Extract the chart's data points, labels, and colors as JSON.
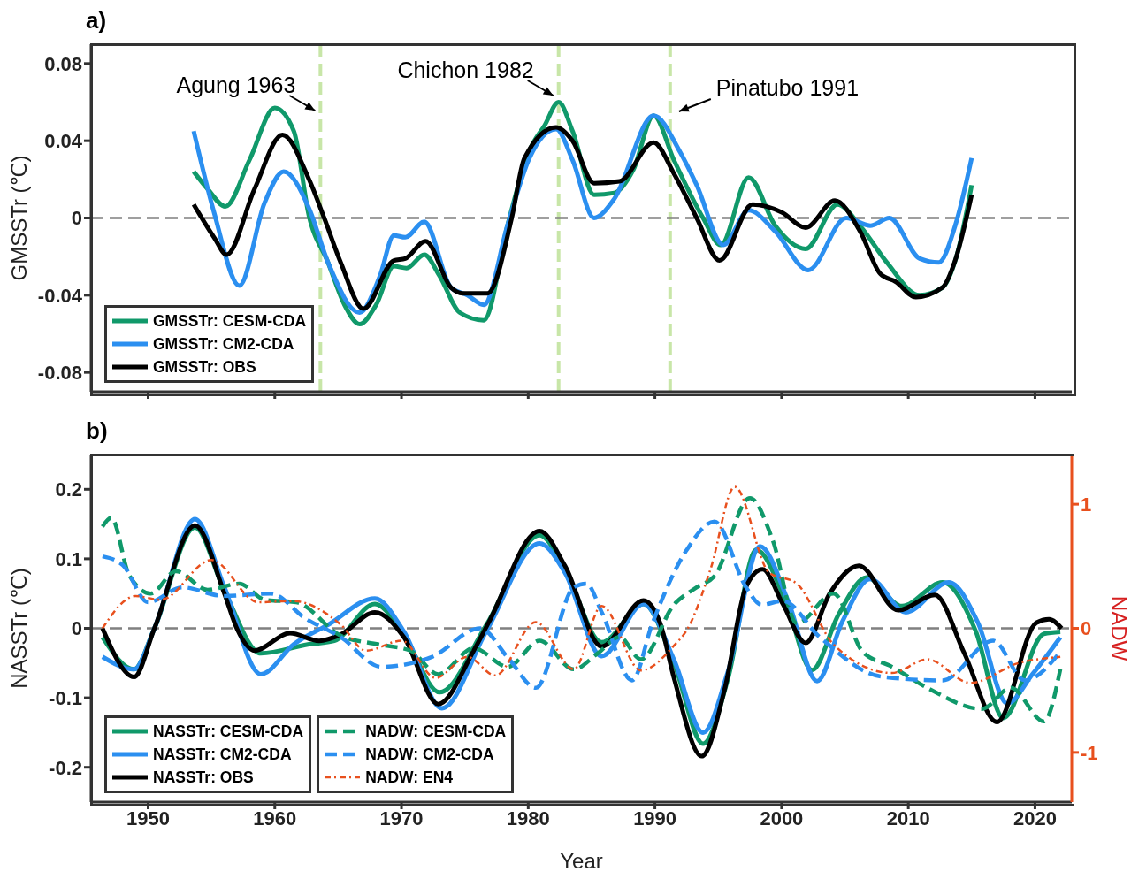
{
  "chart_data": [
    {
      "type": "line",
      "title": "a)",
      "ylabel": "GMSSTr (℃)",
      "xlim": [
        1945.5,
        2022.9
      ],
      "xticks": [
        1950,
        1960,
        1970,
        1980,
        1990,
        2000,
        2010,
        2020
      ],
      "ylim": [
        -0.09,
        0.09
      ],
      "yticks": [
        -0.08,
        -0.04,
        0,
        0.04,
        0.08
      ],
      "tick_labels": "y",
      "legend": "bottom left",
      "ref_lines": [
        {
          "axis": "x",
          "value": 1963.6,
          "label": "Agung 1963",
          "color": "#c8e6a8",
          "line_style": "dashed"
        },
        {
          "axis": "x",
          "value": 1982.4,
          "label": "Chichon 1982",
          "color": "#c8e6a8",
          "line_style": "dashed"
        },
        {
          "axis": "x",
          "value": 1991.2,
          "label": "Pinatubo 1991",
          "color": "#c8e6a8",
          "line_style": "dashed"
        },
        {
          "axis": "y",
          "value": 0,
          "color": "#808080",
          "line_style": "dashed"
        }
      ],
      "series": [
        {
          "name": "GMSSTr: CESM-CDA",
          "color": "#10996a",
          "line_style": "solid",
          "x": [
            1953.6,
            1954.7,
            1956.1,
            1958,
            1960,
            1961.5,
            1962.7,
            1964.2,
            1965.5,
            1966.7,
            1968,
            1969.4,
            1970.4,
            1971.8,
            1973,
            1974.6,
            1976.5,
            1978.4,
            1980.1,
            1981.3,
            1982.4,
            1983.5,
            1985.2,
            1986.8,
            1988.3,
            1989.9,
            1991.5,
            1993.8,
            1995.2,
            1997.4,
            1999.5,
            2001.9,
            2004.4,
            2006.3,
            2008.3,
            2010.9,
            2012.7,
            2013.8,
            2015
          ],
          "values": [
            0.024,
            0.015,
            0.006,
            0.03,
            0.057,
            0.045,
            0.001,
            -0.023,
            -0.045,
            -0.055,
            -0.045,
            -0.025,
            -0.026,
            -0.019,
            -0.03,
            -0.049,
            -0.053,
            -0.003,
            0.035,
            0.048,
            0.06,
            0.045,
            0.012,
            0.013,
            0.025,
            0.053,
            0.03,
            0.0,
            -0.014,
            0.021,
            -0.004,
            -0.016,
            0.007,
            -0.005,
            -0.023,
            -0.04,
            -0.036,
            -0.02,
            0.017
          ]
        },
        {
          "name": "GMSSTr: CM2-CDA",
          "color": "#2b8ff0",
          "line_style": "solid",
          "x": [
            1953.6,
            1955.2,
            1957.2,
            1959.2,
            1960.7,
            1962.7,
            1964.2,
            1966.7,
            1968.3,
            1969.4,
            1970.3,
            1971.8,
            1973.9,
            1975.2,
            1976.5,
            1978.4,
            1980.1,
            1982.2,
            1983.5,
            1985.2,
            1986.8,
            1989.9,
            1992,
            1993.3,
            1995.4,
            1997.4,
            1999.5,
            2002.1,
            2005.1,
            2007,
            2008.5,
            2010.9,
            2012.4,
            2013.7,
            2015
          ],
          "values": [
            0.045,
            0.003,
            -0.035,
            0.008,
            0.024,
            0.005,
            -0.023,
            -0.049,
            -0.03,
            -0.009,
            -0.01,
            -0.002,
            -0.036,
            -0.04,
            -0.045,
            -0.003,
            0.031,
            0.046,
            0.03,
            0.0,
            0.01,
            0.053,
            0.034,
            0.017,
            -0.014,
            0.004,
            -0.007,
            -0.027,
            0.0,
            -0.004,
            0.0,
            -0.021,
            -0.023,
            -0.004,
            0.031
          ]
        },
        {
          "name": "GMSSTr: OBS",
          "color": "#000000",
          "line_style": "solid",
          "x": [
            1953.6,
            1955.2,
            1956.2,
            1958.4,
            1960.6,
            1962.7,
            1963.9,
            1965.2,
            1967,
            1969.4,
            1970.3,
            1971.9,
            1973.9,
            1974.8,
            1976.8,
            1978.7,
            1979.7,
            1982.2,
            1983.5,
            1985.2,
            1987.2,
            1989.9,
            1991.5,
            1993.3,
            1995.1,
            1997.7,
            2000,
            2001.9,
            2004.2,
            2006.2,
            2007.8,
            2009,
            2010.6,
            2012.7,
            2013.7,
            2015
          ],
          "values": [
            0.007,
            -0.01,
            -0.019,
            0.015,
            0.043,
            0.02,
            0.0,
            -0.023,
            -0.047,
            -0.022,
            -0.021,
            -0.012,
            -0.036,
            -0.039,
            -0.039,
            0.0,
            0.031,
            0.047,
            0.04,
            0.018,
            0.019,
            0.039,
            0.023,
            0.0,
            -0.022,
            0.007,
            0.003,
            -0.005,
            0.009,
            -0.007,
            -0.029,
            -0.033,
            -0.041,
            -0.036,
            -0.022,
            0.012
          ]
        }
      ]
    },
    {
      "type": "line",
      "title": "b)",
      "xlabel": "Year",
      "ylabel": "NASSTr (℃)",
      "y2label": "NADW",
      "xlim": [
        1945.5,
        2022.9
      ],
      "xticks": [
        1950,
        1960,
        1970,
        1980,
        1990,
        2000,
        2010,
        2020
      ],
      "ylim": [
        -0.25,
        0.25
      ],
      "yticks": [
        -0.2,
        -0.1,
        0,
        0.1,
        0.2
      ],
      "y2lim": [
        -1.4,
        1.4
      ],
      "y2ticks": [
        -1,
        0,
        1
      ],
      "legend": "bottom left",
      "ref_lines": [
        {
          "axis": "y",
          "value": 0,
          "color": "#808080",
          "line_style": "dashed"
        }
      ],
      "series": [
        {
          "name": "NASSTr: CESM-CDA",
          "color": "#10996a",
          "line_style": "solid",
          "x": [
            1946.4,
            1948.9,
            1950.5,
            1953.7,
            1956,
            1958.9,
            1962.7,
            1964.7,
            1967.9,
            1970.2,
            1973,
            1976.7,
            1980.9,
            1982.9,
            1985.8,
            1989.1,
            1991.5,
            1993.8,
            1995.8,
            1998,
            2000.3,
            2002.4,
            2004.5,
            2006.7,
            2009.5,
            2012.7,
            2015.3,
            2017.5,
            2020.7,
            2022
          ],
          "values": [
            -0.013,
            -0.059,
            0,
            0.145,
            0.055,
            -0.036,
            -0.023,
            -0.018,
            0.035,
            -0.01,
            -0.092,
            0.005,
            0.134,
            0.085,
            -0.02,
            0.035,
            -0.05,
            -0.166,
            -0.07,
            0.113,
            0.04,
            -0.06,
            0.02,
            0.073,
            0.032,
            0.066,
            -0.003,
            -0.129,
            -0.008,
            -0.005
          ]
        },
        {
          "name": "NASSTr: CM2-CDA",
          "color": "#2b8ff0",
          "line_style": "solid",
          "x": [
            1946.4,
            1948.9,
            1950.5,
            1953.7,
            1956,
            1958.9,
            1961.5,
            1964.2,
            1967.9,
            1970.2,
            1973.2,
            1976.7,
            1980.9,
            1982.9,
            1985.8,
            1989.1,
            1991.5,
            1993.8,
            1995.8,
            1998.3,
            2000.5,
            2002.8,
            2004.8,
            2007,
            2009.8,
            2013.2,
            2015.5,
            2017.8,
            2019.8,
            2022
          ],
          "values": [
            -0.041,
            -0.059,
            0,
            0.157,
            0.06,
            -0.066,
            -0.023,
            0.005,
            0.043,
            -0.005,
            -0.115,
            -0.004,
            0.122,
            0.08,
            -0.04,
            0.035,
            -0.045,
            -0.15,
            -0.06,
            0.118,
            0.04,
            -0.076,
            0.01,
            0.071,
            0.023,
            0.066,
            0.008,
            -0.108,
            -0.066,
            -0.013
          ]
        },
        {
          "name": "NASSTr: OBS",
          "color": "#000000",
          "line_style": "solid",
          "x": [
            1946.4,
            1948.9,
            1950.5,
            1953.7,
            1956,
            1957,
            1958.4,
            1961.2,
            1963.5,
            1965.2,
            1967.9,
            1970.2,
            1972.9,
            1975.7,
            1976.9,
            1980.9,
            1982.9,
            1985.8,
            1989.1,
            1990.4,
            1991.5,
            1993.7,
            1995.5,
            1997.2,
            1998.5,
            2000.1,
            2001.9,
            2003.8,
            2006.1,
            2009.2,
            2012.1,
            2014.4,
            2017,
            2020.1,
            2021.1,
            2022.1
          ],
          "values": [
            0,
            -0.07,
            0,
            0.148,
            0.051,
            0,
            -0.032,
            -0.007,
            -0.018,
            -0.009,
            0.023,
            -0.013,
            -0.109,
            -0.032,
            0.009,
            0.14,
            0.09,
            -0.026,
            0.04,
            0.008,
            -0.071,
            -0.184,
            -0.088,
            0.06,
            0.085,
            0.035,
            -0.021,
            0.05,
            0.09,
            0.026,
            0.048,
            -0.035,
            -0.135,
            0.008,
            0.013,
            0
          ]
        },
        {
          "name": "NADW: CESM-CDA",
          "color": "#10996a",
          "line_style": "dashed",
          "axis": "y2",
          "x": [
            1946.4,
            1947.1,
            1948.5,
            1950.2,
            1952.2,
            1954.7,
            1957.2,
            1959.2,
            1961.7,
            1965.2,
            1968.2,
            1970.7,
            1972.9,
            1975.7,
            1978.4,
            1980.9,
            1983.6,
            1985.5,
            1987.2,
            1988.9,
            1991.5,
            1993.3,
            1994.7,
            1997.5,
            1999.3,
            2001.2,
            2004.1,
            2006.4,
            2008.7,
            2011.5,
            2015.8,
            2018.1,
            2020.7,
            2022
          ],
          "values": [
            0.82,
            0.89,
            0.43,
            0.28,
            0.46,
            0.31,
            0.36,
            0.23,
            0.21,
            -0.06,
            -0.13,
            -0.18,
            -0.37,
            -0.16,
            -0.31,
            -0.1,
            -0.33,
            -0.2,
            -0.07,
            -0.25,
            0.19,
            0.33,
            0.42,
            1.05,
            0.71,
            0.04,
            0.28,
            -0.19,
            -0.31,
            -0.48,
            -0.65,
            -0.48,
            -0.75,
            -0.33
          ]
        },
        {
          "name": "NADW: CM2-CDA",
          "color": "#2b8ff0",
          "line_style": "dashed",
          "axis": "y2",
          "x": [
            1946.4,
            1948,
            1950,
            1952.7,
            1956,
            1959.7,
            1962.4,
            1965.2,
            1968.4,
            1972.4,
            1976.2,
            1978.5,
            1980.6,
            1983.6,
            1984.6,
            1985.8,
            1988.2,
            1989.8,
            1992.5,
            1994.7,
            1997.2,
            1998.4,
            2000.1,
            2003,
            2007.9,
            2012.7,
            2016.7,
            2019.2,
            2022
          ],
          "values": [
            0.58,
            0.51,
            0.21,
            0.33,
            0.26,
            0.28,
            0.08,
            -0.07,
            -0.31,
            -0.23,
            0.0,
            -0.25,
            -0.48,
            0.33,
            0.36,
            0.13,
            -0.42,
            0.04,
            0.63,
            0.86,
            0.33,
            0.19,
            0.22,
            -0.07,
            -0.39,
            -0.42,
            -0.1,
            -0.42,
            -0.19
          ]
        },
        {
          "name": "NADW: EN4",
          "color": "#e8501e",
          "line_style": "dotted",
          "axis": "y2",
          "x": [
            1946.4,
            1949,
            1951,
            1955,
            1958.7,
            1961.4,
            1965.2,
            1967.2,
            1970,
            1972.7,
            1975.2,
            1977.4,
            1980.6,
            1983.6,
            1985.8,
            1988.9,
            1991.5,
            1992.6,
            1994.4,
            1996.3,
            1999,
            2001.2,
            2004.1,
            2008.7,
            2011.5,
            2014.9,
            2018.7,
            2022
          ],
          "values": [
            0,
            0.26,
            0.23,
            0.55,
            0.21,
            0.22,
            0.03,
            -0.18,
            -0.1,
            -0.4,
            -0.23,
            -0.38,
            0.05,
            -0.33,
            0.18,
            -0.34,
            -0.14,
            0,
            0.48,
            1.14,
            0.45,
            0.36,
            -0.13,
            -0.36,
            -0.25,
            -0.44,
            -0.28,
            -0.23
          ]
        }
      ]
    }
  ]
}
